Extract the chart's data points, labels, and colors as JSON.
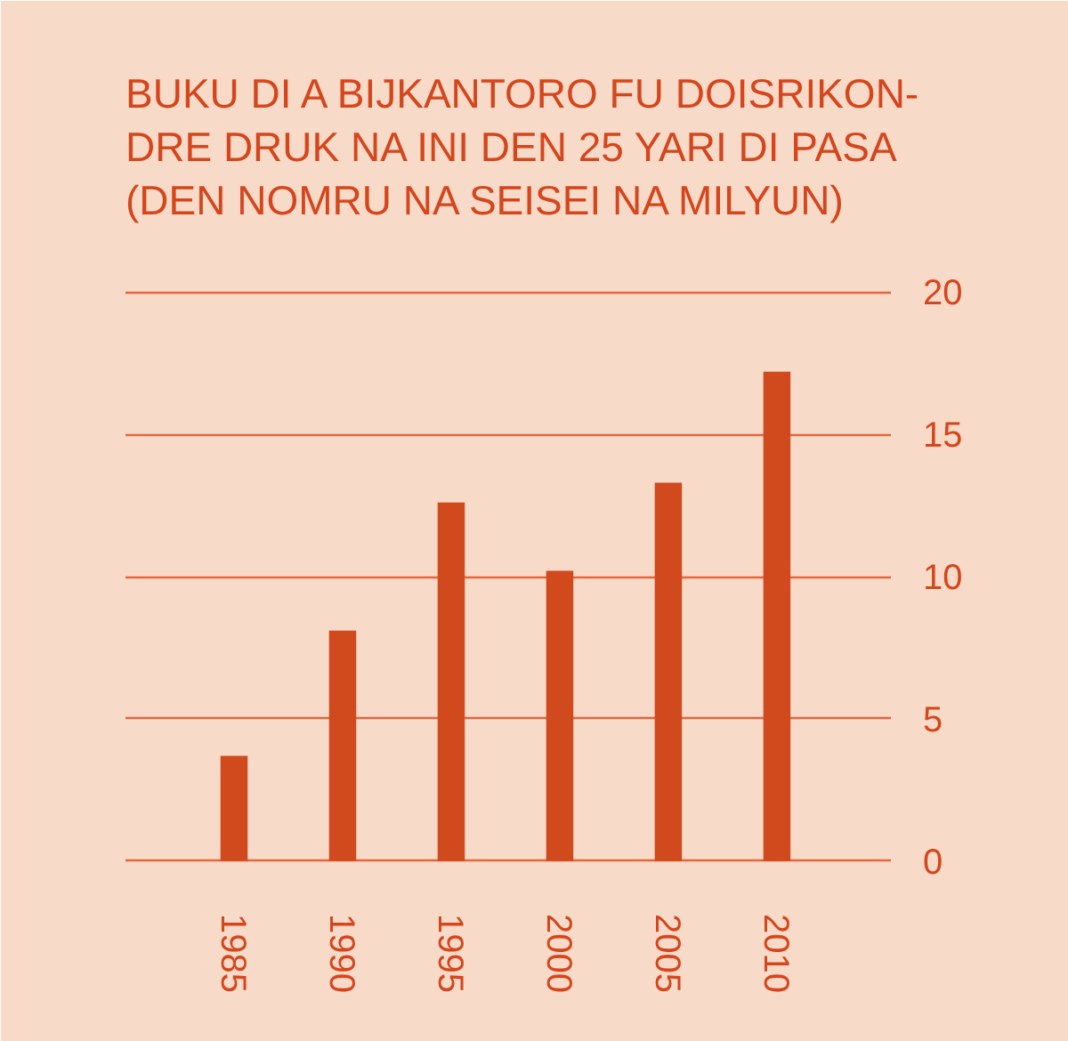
{
  "chart_data": {
    "type": "bar",
    "title": "BUKU DI A BIJKANTORO FU DOISRIKON-\nDRE DRUK NA INI DEN 25 YARI DI PASA\n(DEN NOMRU NA SEISEI NA MILYUN)",
    "categories": [
      "1985",
      "1990",
      "1995",
      "2000",
      "2005",
      "2010"
    ],
    "values": [
      3.7,
      8.1,
      12.6,
      10.2,
      13.3,
      17.2
    ],
    "color": "#d14a1e",
    "ylim": [
      0,
      20
    ],
    "yticks": [
      0,
      5,
      10,
      15,
      20
    ],
    "grid": "y"
  }
}
